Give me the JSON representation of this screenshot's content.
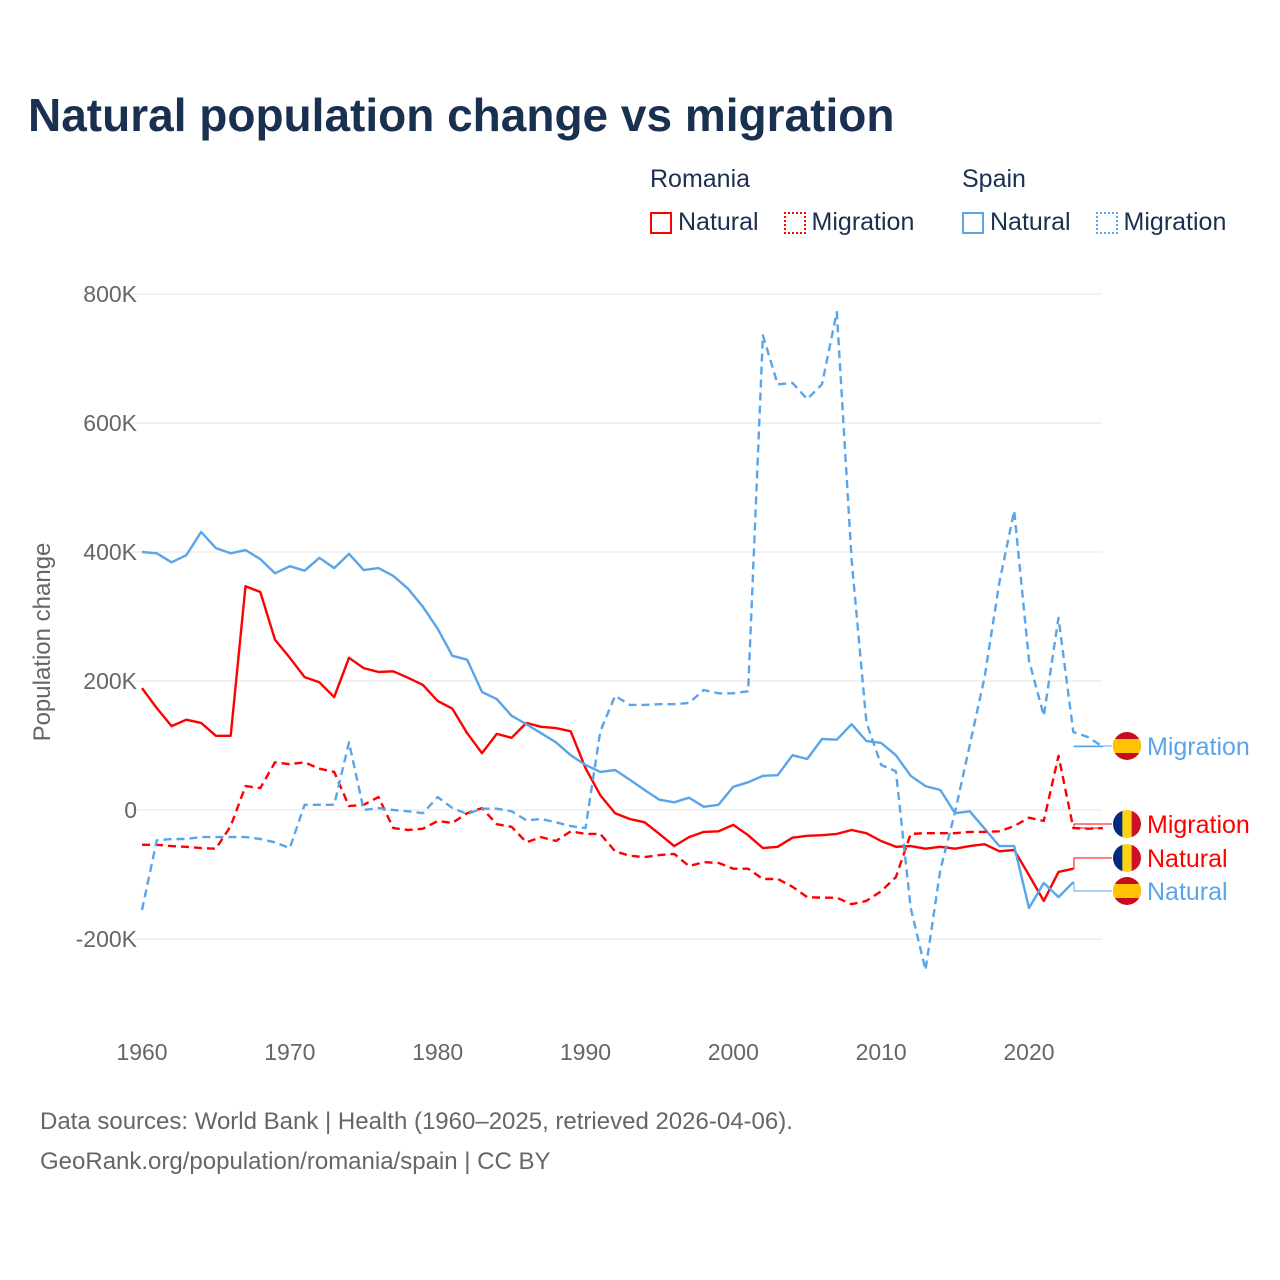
{
  "chart_data": {
    "type": "line",
    "title": "Natural population change vs migration",
    "ylabel": "Population change",
    "xlabel": "",
    "ylim": [
      -300000,
      820000
    ],
    "xlim": [
      1960,
      2025
    ],
    "y_ticks": [
      -200000,
      0,
      200000,
      400000,
      600000,
      800000
    ],
    "y_tick_labels": [
      "-200K",
      "0",
      "200K",
      "400K",
      "600K",
      "800K"
    ],
    "x_ticks": [
      1960,
      1970,
      1980,
      1990,
      2000,
      2010,
      2020
    ],
    "x_tick_labels": [
      "1960",
      "1970",
      "1980",
      "1990",
      "2000",
      "2010",
      "2020"
    ],
    "grid": true,
    "legend_placement": "top-right",
    "legend": {
      "groups": [
        {
          "title": "Romania",
          "items": [
            "Natural",
            "Migration"
          ]
        },
        {
          "title": "Spain",
          "items": [
            "Natural",
            "Migration"
          ]
        }
      ]
    },
    "series": [
      {
        "name": "Romania Natural",
        "country": "Romania",
        "kind": "Natural",
        "color": "#ff0000",
        "dashed": false,
        "label": "Natural",
        "start": 1960,
        "values": [
          189,
          158,
          130,
          140,
          135,
          115,
          115,
          347,
          338,
          264,
          236,
          206,
          198,
          175,
          236,
          220,
          214,
          215,
          205,
          194,
          169,
          157,
          119,
          88,
          118,
          112,
          135,
          129,
          127,
          122,
          65,
          23,
          -5,
          -14,
          -19,
          -37,
          -56,
          -42,
          -34,
          -33,
          -23,
          -39,
          -59,
          -57,
          -43,
          -40,
          -39,
          -37,
          -31,
          -36,
          -48,
          -57,
          -56,
          -60,
          -57,
          -60,
          -56,
          -53,
          -64,
          -62,
          -101,
          -141,
          -96,
          -91
        ]
      },
      {
        "name": "Spain Natural",
        "country": "Spain",
        "kind": "Natural",
        "color": "#5aa5ea",
        "dashed": false,
        "label": "Natural",
        "start": 1960,
        "values": [
          400,
          398,
          384,
          395,
          431,
          406,
          398,
          403,
          389,
          367,
          378,
          371,
          391,
          375,
          397,
          372,
          375,
          363,
          343,
          315,
          281,
          239,
          233,
          183,
          172,
          146,
          133,
          119,
          105,
          85,
          70,
          59,
          62,
          47,
          31,
          16,
          12,
          19,
          5,
          8,
          36,
          43,
          53,
          54,
          85,
          79,
          110,
          109,
          133,
          107,
          104,
          85,
          53,
          37,
          31,
          -5,
          -2,
          -29,
          -56,
          -56,
          -152,
          -113,
          -135,
          -112
        ]
      },
      {
        "name": "Romania Migration",
        "country": "Romania",
        "kind": "Migration",
        "color": "#ff0000",
        "dashed": true,
        "label": "Migration",
        "start": 1960,
        "values": [
          -54,
          -54,
          -56,
          -57,
          -59,
          -60,
          -25,
          37,
          34,
          74,
          71,
          74,
          64,
          59,
          6,
          8,
          20,
          -28,
          -31,
          -29,
          -17,
          -20,
          -5,
          3,
          -22,
          -26,
          -50,
          -42,
          -48,
          -33,
          -37,
          -37,
          -64,
          -71,
          -73,
          -70,
          -68,
          -87,
          -81,
          -82,
          -91,
          -91,
          -107,
          -107,
          -119,
          -135,
          -136,
          -136,
          -146,
          -141,
          -126,
          -104,
          -37,
          -36,
          -36,
          -36,
          -34,
          -34,
          -33,
          -25,
          -12,
          -17,
          84,
          -28,
          -29,
          -28
        ]
      },
      {
        "name": "Spain Migration",
        "country": "Spain",
        "kind": "Migration",
        "color": "#5aa5ea",
        "dashed": true,
        "label": "Migration",
        "start": 1960,
        "values": [
          -155,
          -47,
          -45,
          -45,
          -42,
          -42,
          -42,
          -42,
          -45,
          -50,
          -59,
          8,
          8,
          8,
          105,
          0,
          3,
          0,
          -2,
          -5,
          20,
          3,
          -6,
          2,
          2,
          -2,
          -16,
          -14,
          -19,
          -25,
          -28,
          122,
          177,
          163,
          163,
          164,
          164,
          166,
          186,
          181,
          181,
          184,
          736,
          660,
          662,
          637,
          660,
          772,
          388,
          136,
          70,
          60,
          -152,
          -248,
          -93,
          -3,
          101,
          206,
          353,
          464,
          232,
          146,
          298,
          121,
          113,
          98
        ]
      }
    ],
    "value_unit": "thousands"
  },
  "legend": {
    "romania": {
      "title": "Romania",
      "natural": "Natural",
      "migration": "Migration"
    },
    "spain": {
      "title": "Spain",
      "natural": "Natural",
      "migration": "Migration"
    }
  },
  "end_labels": {
    "spain_migration": "Migration",
    "romania_migration": "Migration",
    "romania_natural": "Natural",
    "spain_natural": "Natural"
  },
  "footer": {
    "line1": "Data sources: World Bank | Health (1960–2025, retrieved 2026-04-06).",
    "line2": "GeoRank.org/population/romania/spain | CC BY"
  },
  "colors": {
    "romania": "#ff0000",
    "spain": "#5aa5ea",
    "title": "#1a3050"
  }
}
